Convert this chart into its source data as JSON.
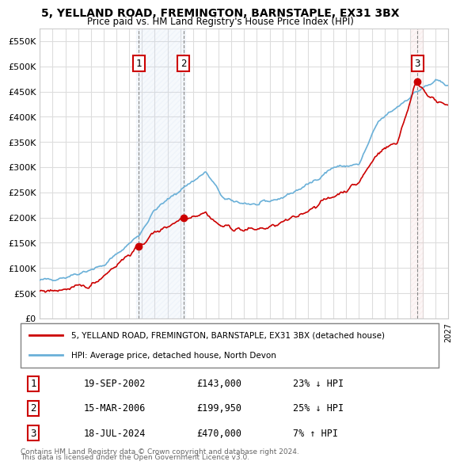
{
  "title": "5, YELLAND ROAD, FREMINGTON, BARNSTAPLE, EX31 3BX",
  "subtitle": "Price paid vs. HM Land Registry's House Price Index (HPI)",
  "ylabel": "",
  "ylim": [
    0,
    575000
  ],
  "yticks": [
    0,
    50000,
    100000,
    150000,
    200000,
    250000,
    300000,
    350000,
    400000,
    450000,
    500000,
    550000
  ],
  "ytick_labels": [
    "£0",
    "£50K",
    "£100K",
    "£150K",
    "£200K",
    "£250K",
    "£300K",
    "£350K",
    "£400K",
    "£450K",
    "£500K",
    "£550K"
  ],
  "hpi_color": "#6ab0d8",
  "price_color": "#cc0000",
  "transaction_color": "#cc0000",
  "transactions": [
    {
      "date_label": "19-SEP-2002",
      "price": 143000,
      "label": "1",
      "hpi_pct": "23% ↓ HPI"
    },
    {
      "date_label": "15-MAR-2006",
      "price": 199950,
      "label": "2",
      "hpi_pct": "25% ↓ HPI"
    },
    {
      "date_label": "18-JUL-2024",
      "price": 470000,
      "label": "3",
      "hpi_pct": "7% ↑ HPI"
    }
  ],
  "legend_line1": "5, YELLAND ROAD, FREMINGTON, BARNSTAPLE, EX31 3BX (detached house)",
  "legend_line2": "HPI: Average price, detached house, North Devon",
  "footnote1": "Contains HM Land Registry data © Crown copyright and database right 2024.",
  "footnote2": "This data is licensed under the Open Government Licence v3.0.",
  "background_color": "#ffffff",
  "grid_color": "#dddddd",
  "hatch_color_1": "#c8d8f0",
  "hatch_color_2": "#f0c8c8"
}
